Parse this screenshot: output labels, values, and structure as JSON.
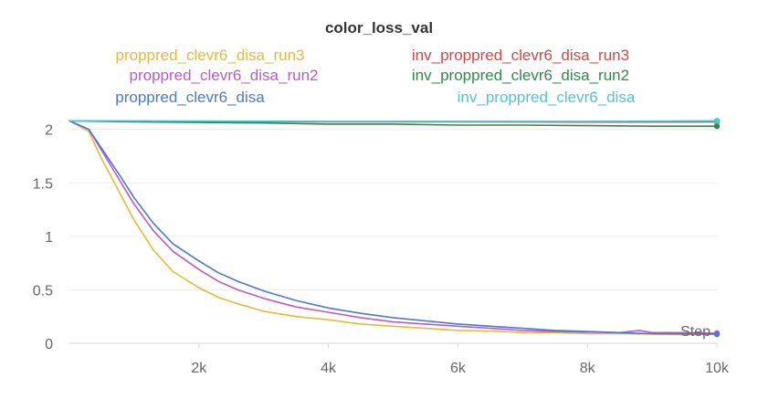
{
  "chart_data": {
    "type": "line",
    "title": "color_loss_val",
    "xlabel": "Step",
    "ylabel": "",
    "xlim": [
      0,
      10000
    ],
    "ylim": [
      0,
      2.1
    ],
    "x_ticks": [
      2000,
      4000,
      6000,
      8000,
      10000
    ],
    "x_tick_labels": [
      "2k",
      "4k",
      "6k",
      "8k",
      "10k"
    ],
    "y_ticks": [
      0,
      0.5,
      1,
      1.5,
      2
    ],
    "y_tick_labels": [
      "0",
      "0.5",
      "1",
      "1.5",
      "2"
    ],
    "grid": true,
    "legend_position": "top",
    "series": [
      {
        "name": "proppred_clevr6_disa_run3",
        "color": "#e8b83a",
        "points": [
          [
            0,
            2.08
          ],
          [
            300,
            1.98
          ],
          [
            500,
            1.72
          ],
          [
            800,
            1.38
          ],
          [
            1000,
            1.15
          ],
          [
            1300,
            0.87
          ],
          [
            1600,
            0.67
          ],
          [
            2000,
            0.52
          ],
          [
            2300,
            0.43
          ],
          [
            2600,
            0.37
          ],
          [
            3000,
            0.3
          ],
          [
            3500,
            0.25
          ],
          [
            4000,
            0.22
          ],
          [
            4500,
            0.18
          ],
          [
            5000,
            0.16
          ],
          [
            5500,
            0.14
          ],
          [
            6000,
            0.12
          ],
          [
            6500,
            0.115
          ],
          [
            7000,
            0.1
          ],
          [
            7500,
            0.1
          ],
          [
            8000,
            0.09
          ],
          [
            8500,
            0.09
          ],
          [
            9000,
            0.085
          ],
          [
            9500,
            0.08
          ],
          [
            10000,
            0.085
          ]
        ]
      },
      {
        "name": "inv_proppred_clevr6_disa_run3",
        "color": "#d84545",
        "points": [
          [
            0,
            2.08
          ],
          [
            2000,
            2.075
          ],
          [
            4000,
            2.07
          ],
          [
            6000,
            2.07
          ],
          [
            8000,
            2.068
          ],
          [
            10000,
            2.07
          ]
        ]
      },
      {
        "name": "proppred_clevr6_disa_run2",
        "color": "#bb5ac9",
        "points": [
          [
            0,
            2.08
          ],
          [
            300,
            2.0
          ],
          [
            500,
            1.8
          ],
          [
            800,
            1.5
          ],
          [
            1000,
            1.3
          ],
          [
            1300,
            1.05
          ],
          [
            1600,
            0.86
          ],
          [
            2000,
            0.69
          ],
          [
            2300,
            0.58
          ],
          [
            2600,
            0.5
          ],
          [
            3000,
            0.42
          ],
          [
            3500,
            0.34
          ],
          [
            4000,
            0.29
          ],
          [
            4500,
            0.24
          ],
          [
            5000,
            0.2
          ],
          [
            5500,
            0.18
          ],
          [
            6000,
            0.16
          ],
          [
            6500,
            0.14
          ],
          [
            7000,
            0.12
          ],
          [
            7500,
            0.11
          ],
          [
            8000,
            0.105
          ],
          [
            8500,
            0.1
          ],
          [
            8800,
            0.12
          ],
          [
            9000,
            0.1
          ],
          [
            9500,
            0.1
          ],
          [
            10000,
            0.095
          ]
        ]
      },
      {
        "name": "inv_proppred_clevr6_disa_run2",
        "color": "#2e8b47",
        "points": [
          [
            0,
            2.08
          ],
          [
            1000,
            2.07
          ],
          [
            2000,
            2.065
          ],
          [
            3000,
            2.06
          ],
          [
            4000,
            2.05
          ],
          [
            5000,
            2.05
          ],
          [
            6000,
            2.04
          ],
          [
            7000,
            2.04
          ],
          [
            8000,
            2.035
          ],
          [
            9000,
            2.03
          ],
          [
            10000,
            2.03
          ]
        ]
      },
      {
        "name": "proppred_clevr6_disa",
        "color": "#4a78d6",
        "points": [
          [
            0,
            2.08
          ],
          [
            300,
            2.0
          ],
          [
            500,
            1.82
          ],
          [
            800,
            1.55
          ],
          [
            1000,
            1.36
          ],
          [
            1300,
            1.12
          ],
          [
            1600,
            0.93
          ],
          [
            2000,
            0.77
          ],
          [
            2300,
            0.66
          ],
          [
            2600,
            0.58
          ],
          [
            3000,
            0.49
          ],
          [
            3500,
            0.4
          ],
          [
            4000,
            0.33
          ],
          [
            4500,
            0.28
          ],
          [
            5000,
            0.24
          ],
          [
            5500,
            0.21
          ],
          [
            6000,
            0.18
          ],
          [
            6500,
            0.16
          ],
          [
            7000,
            0.14
          ],
          [
            7500,
            0.12
          ],
          [
            8000,
            0.11
          ],
          [
            8500,
            0.1
          ],
          [
            9000,
            0.09
          ],
          [
            9500,
            0.09
          ],
          [
            10000,
            0.085
          ]
        ]
      },
      {
        "name": "inv_proppred_clevr6_disa",
        "color": "#4fc4d4",
        "points": [
          [
            0,
            2.08
          ],
          [
            2000,
            2.078
          ],
          [
            4000,
            2.075
          ],
          [
            6000,
            2.075
          ],
          [
            8000,
            2.075
          ],
          [
            10000,
            2.08
          ]
        ]
      }
    ]
  }
}
